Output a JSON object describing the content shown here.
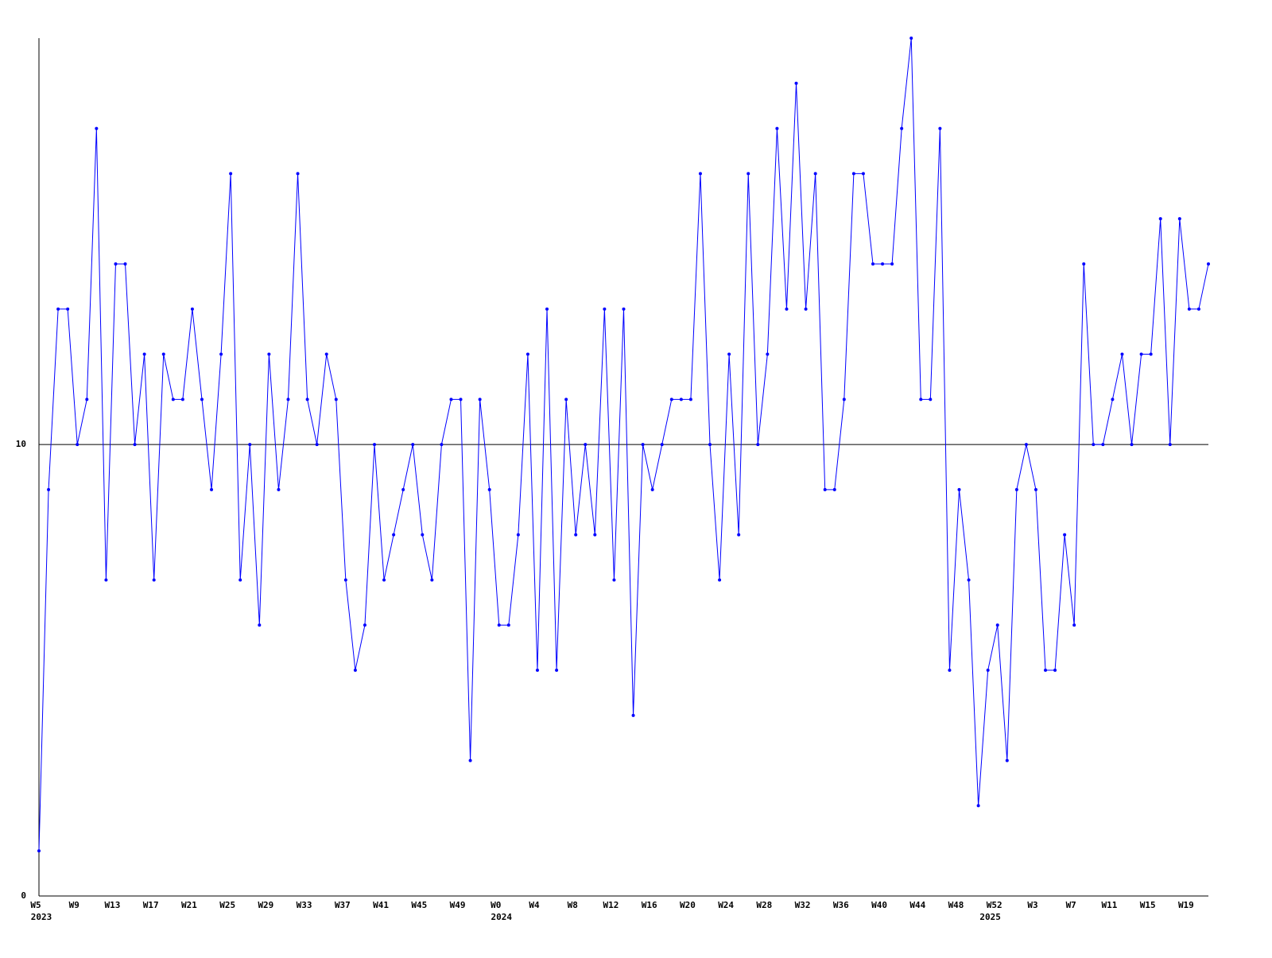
{
  "chart_data": {
    "type": "line",
    "color": "#0000ff",
    "categories": [
      "W5",
      null,
      null,
      null,
      "W9",
      null,
      null,
      null,
      "W13",
      null,
      null,
      null,
      "W17",
      null,
      null,
      null,
      "W21",
      null,
      null,
      null,
      "W25",
      null,
      null,
      null,
      "W29",
      null,
      null,
      null,
      "W33",
      null,
      null,
      null,
      "W37",
      null,
      null,
      null,
      "W41",
      null,
      null,
      null,
      "W45",
      null,
      null,
      null,
      "W49",
      null,
      null,
      null,
      "W0",
      null,
      null,
      null,
      "W4",
      null,
      null,
      null,
      "W8",
      null,
      null,
      null,
      "W12",
      null,
      null,
      null,
      "W16",
      null,
      null,
      null,
      "W20",
      null,
      null,
      null,
      "W24",
      null,
      null,
      null,
      "W28",
      null,
      null,
      null,
      "W32",
      null,
      null,
      null,
      "W36",
      null,
      null,
      null,
      "W40",
      null,
      null,
      null,
      "W44",
      null,
      null,
      null,
      "W48",
      null,
      null,
      null,
      "W52",
      null,
      null,
      null,
      "W3",
      null,
      null,
      null,
      "W7",
      null,
      null,
      null,
      "W11",
      null,
      null,
      null,
      "W15",
      null,
      null,
      null,
      "W19",
      null,
      null
    ],
    "category_years": [
      "2023",
      null,
      null,
      null,
      null,
      null,
      null,
      null,
      null,
      null,
      null,
      null,
      null,
      null,
      null,
      null,
      null,
      null,
      null,
      null,
      null,
      null,
      null,
      null,
      null,
      null,
      null,
      null,
      null,
      null,
      null,
      null,
      null,
      null,
      null,
      null,
      null,
      null,
      null,
      null,
      null,
      null,
      null,
      null,
      null,
      null,
      null,
      null,
      "2024",
      null,
      null,
      null,
      null,
      null,
      null,
      null,
      null,
      null,
      null,
      null,
      null,
      null,
      null,
      null,
      null,
      null,
      null,
      null,
      null,
      null,
      null,
      null,
      null,
      null,
      null,
      null,
      null,
      null,
      null,
      null,
      null,
      null,
      null,
      null,
      null,
      null,
      null,
      null,
      null,
      null,
      null,
      null,
      null,
      null,
      null,
      null,
      null,
      null,
      null,
      "2025",
      null,
      null,
      null,
      null,
      null,
      null,
      null,
      null,
      null,
      null,
      null,
      null,
      null,
      null,
      null,
      null,
      null,
      null,
      null,
      null
    ],
    "values": [
      1,
      9,
      13,
      13,
      10,
      11,
      17,
      7,
      14,
      14,
      10,
      12,
      7,
      12,
      11,
      11,
      13,
      11,
      9,
      12,
      16,
      7,
      10,
      6,
      12,
      9,
      11,
      16,
      11,
      10,
      12,
      11,
      7,
      5,
      6,
      10,
      7,
      8,
      9,
      10,
      8,
      7,
      10,
      11,
      11,
      3,
      11,
      9,
      6,
      6,
      8,
      12,
      5,
      13,
      5,
      11,
      8,
      10,
      8,
      13,
      7,
      13,
      4,
      10,
      9,
      10,
      11,
      11,
      11,
      16,
      10,
      7,
      12,
      8,
      16,
      10,
      12,
      17,
      13,
      18,
      13,
      16,
      9,
      9,
      11,
      16,
      16,
      14,
      14,
      14,
      17,
      19,
      11,
      11,
      17,
      5,
      9,
      7,
      2,
      5,
      6,
      3,
      9,
      10,
      9,
      5,
      5,
      8,
      6,
      14,
      10,
      10,
      11,
      12,
      10,
      12,
      12,
      15,
      10,
      15,
      13,
      13,
      14
    ],
    "ylim": [
      0,
      19
    ],
    "yticks": [
      0,
      10
    ],
    "grid": true
  }
}
